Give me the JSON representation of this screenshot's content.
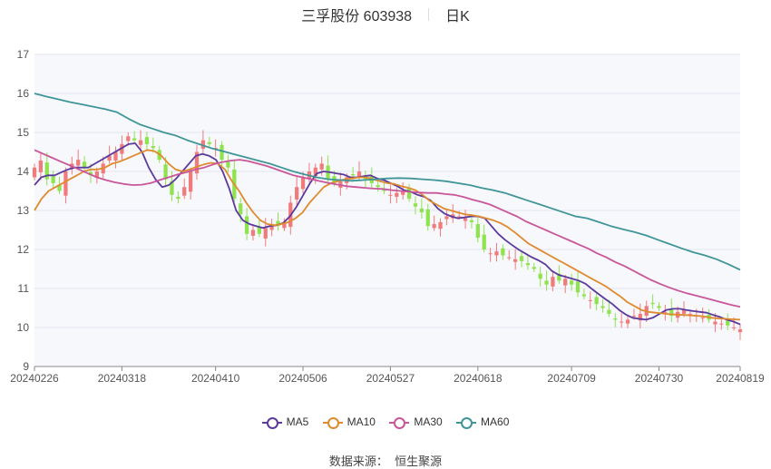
{
  "header": {
    "title": "三孚股份 603938",
    "period": "日K"
  },
  "legend": [
    {
      "name": "MA5",
      "color": "#5b3a9c"
    },
    {
      "name": "MA10",
      "color": "#e08a2e"
    },
    {
      "name": "MA30",
      "color": "#c9569a"
    },
    {
      "name": "MA60",
      "color": "#3f9597"
    }
  ],
  "source": {
    "label": "数据来源：",
    "value": "恒生聚源"
  },
  "colors": {
    "up": "#f07b7b",
    "down": "#8fe34f",
    "grid": "#e4e6ef",
    "plot_bg": "#f7f8fc"
  },
  "chart_data": {
    "type": "candlestick",
    "ylim": [
      9,
      17
    ],
    "yticks": [
      9,
      10,
      11,
      12,
      13,
      14,
      15,
      16,
      17
    ],
    "xtick_labels": [
      "20240226",
      "20240318",
      "20240410",
      "20240506",
      "20240527",
      "20240618",
      "20240709",
      "20240730",
      "20240819"
    ],
    "xtick_index": [
      0,
      14,
      29,
      43,
      57,
      71,
      86,
      100,
      113
    ],
    "candle_count": 114,
    "closes": [
      14.1,
      14.28,
      13.8,
      13.7,
      13.5,
      14.0,
      14.2,
      14.3,
      14.1,
      13.9,
      14.0,
      14.2,
      14.4,
      14.5,
      14.7,
      14.9,
      14.8,
      14.8,
      14.7,
      14.6,
      14.3,
      13.8,
      13.4,
      13.3,
      13.6,
      14.0,
      14.5,
      14.8,
      14.7,
      14.6,
      14.3,
      14.1,
      13.3,
      12.9,
      12.4,
      12.5,
      12.4,
      12.55,
      12.65,
      12.6,
      12.7,
      13.2,
      13.6,
      13.85,
      14.0,
      14.1,
      14.2,
      13.8,
      13.7,
      13.75,
      13.85,
      13.9,
      14.0,
      13.8,
      13.7,
      13.6,
      13.5,
      13.4,
      13.45,
      13.5,
      13.3,
      13.1,
      12.95,
      12.6,
      12.65,
      12.7,
      12.85,
      12.9,
      12.85,
      12.8,
      12.7,
      12.3,
      12.0,
      11.9,
      11.95,
      11.85,
      11.8,
      11.75,
      11.7,
      11.6,
      11.5,
      11.25,
      11.1,
      11.3,
      11.2,
      11.25,
      11.1,
      10.9,
      10.8,
      10.7,
      10.6,
      10.5,
      10.35,
      10.2,
      10.15,
      10.2,
      10.3,
      10.35,
      10.55,
      10.6,
      10.5,
      10.4,
      10.3,
      10.4,
      10.45,
      10.35,
      10.3,
      10.25,
      10.2,
      10.15,
      10.1,
      10.05,
      10.0,
      9.95
    ],
    "ma5": [
      13.65,
      13.85,
      13.9,
      13.9,
      13.98,
      14.05,
      14.1,
      14.1,
      14.1,
      14.2,
      14.3,
      14.4,
      14.5,
      14.6,
      14.7,
      14.72,
      14.5,
      14.1,
      13.8,
      13.6,
      13.65,
      13.8,
      14.0,
      14.2,
      14.4,
      14.45,
      14.4,
      14.3,
      14.0,
      13.55,
      13.0,
      12.75,
      12.65,
      12.6,
      12.55,
      12.6,
      12.62,
      12.68,
      12.85,
      13.1,
      13.4,
      13.7,
      13.95,
      14.0,
      13.98,
      13.95,
      13.92,
      13.85,
      13.85,
      13.88,
      13.9,
      13.82,
      13.78,
      13.7,
      13.62,
      13.52,
      13.48,
      13.4,
      13.35,
      13.25,
      13.05,
      12.92,
      12.85,
      12.8,
      12.82,
      12.85,
      12.85,
      12.8,
      12.6,
      12.4,
      12.25,
      12.12,
      12.0,
      11.9,
      11.8,
      11.72,
      11.62,
      11.45,
      11.35,
      11.3,
      11.25,
      11.2,
      11.12,
      10.98,
      10.85,
      10.72,
      10.6,
      10.45,
      10.33,
      10.25,
      10.22,
      10.2,
      10.25,
      10.35,
      10.45,
      10.48,
      10.48,
      10.45,
      10.42,
      10.4,
      10.38,
      10.32,
      10.27,
      10.2,
      10.15,
      10.08
    ],
    "ma10": [
      13.0,
      13.3,
      13.5,
      13.6,
      13.7,
      13.8,
      13.9,
      14.0,
      14.05,
      14.05,
      14.1,
      14.2,
      14.25,
      14.32,
      14.4,
      14.48,
      14.55,
      14.52,
      14.4,
      14.2,
      14.05,
      14.0,
      14.05,
      14.12,
      14.18,
      14.22,
      14.2,
      14.05,
      13.75,
      13.5,
      13.2,
      12.95,
      12.75,
      12.65,
      12.62,
      12.65,
      12.7,
      12.8,
      12.95,
      13.2,
      13.4,
      13.6,
      13.7,
      13.75,
      13.8,
      13.82,
      13.85,
      13.85,
      13.8,
      13.75,
      13.7,
      13.68,
      13.62,
      13.58,
      13.52,
      13.4,
      13.25,
      13.15,
      13.05,
      13.0,
      12.95,
      12.9,
      12.88,
      12.85,
      12.8,
      12.75,
      12.68,
      12.58,
      12.45,
      12.3,
      12.15,
      12.05,
      11.95,
      11.85,
      11.75,
      11.65,
      11.55,
      11.45,
      11.35,
      11.25,
      11.15,
      11.05,
      10.92,
      10.8,
      10.65,
      10.55,
      10.45,
      10.4,
      10.38,
      10.36,
      10.34,
      10.33,
      10.32,
      10.31,
      10.3,
      10.28,
      10.25,
      10.23,
      10.22,
      10.21,
      10.2
    ],
    "ma30": [
      14.55,
      14.45,
      14.35,
      14.25,
      14.15,
      14.05,
      13.95,
      13.85,
      13.78,
      13.72,
      13.68,
      13.65,
      13.66,
      13.7,
      13.78,
      13.85,
      13.92,
      13.98,
      14.05,
      14.1,
      14.18,
      14.24,
      14.28,
      14.3,
      14.26,
      14.2,
      14.14,
      14.06,
      13.98,
      13.9,
      13.85,
      13.8,
      13.75,
      13.7,
      13.66,
      13.62,
      13.6,
      13.58,
      13.56,
      13.55,
      13.52,
      13.5,
      13.48,
      13.46,
      13.45,
      13.45,
      13.42,
      13.4,
      13.35,
      13.28,
      13.22,
      13.15,
      13.05,
      12.95,
      12.85,
      12.72,
      12.62,
      12.52,
      12.42,
      12.32,
      12.22,
      12.12,
      12.02,
      11.9,
      11.8,
      11.68,
      11.58,
      11.46,
      11.34,
      11.22,
      11.12,
      11.03,
      10.95,
      10.88,
      10.82,
      10.76,
      10.7,
      10.64,
      10.58,
      10.53
    ],
    "ma60": [
      16.0,
      15.92,
      15.85,
      15.78,
      15.72,
      15.66,
      15.6,
      15.52,
      15.35,
      15.2,
      15.1,
      15.0,
      14.92,
      14.8,
      14.7,
      14.6,
      14.52,
      14.44,
      14.36,
      14.28,
      14.2,
      14.1,
      14.0,
      13.92,
      13.85,
      13.8,
      13.78,
      13.76,
      13.78,
      13.8,
      13.82,
      13.83,
      13.82,
      13.8,
      13.78,
      13.75,
      13.7,
      13.65,
      13.58,
      13.52,
      13.45,
      13.35,
      13.25,
      13.15,
      13.05,
      12.95,
      12.85,
      12.8,
      12.7,
      12.6,
      12.52,
      12.45,
      12.36,
      12.25,
      12.14,
      12.03,
      11.93,
      11.85,
      11.75,
      11.62,
      11.48
    ]
  }
}
